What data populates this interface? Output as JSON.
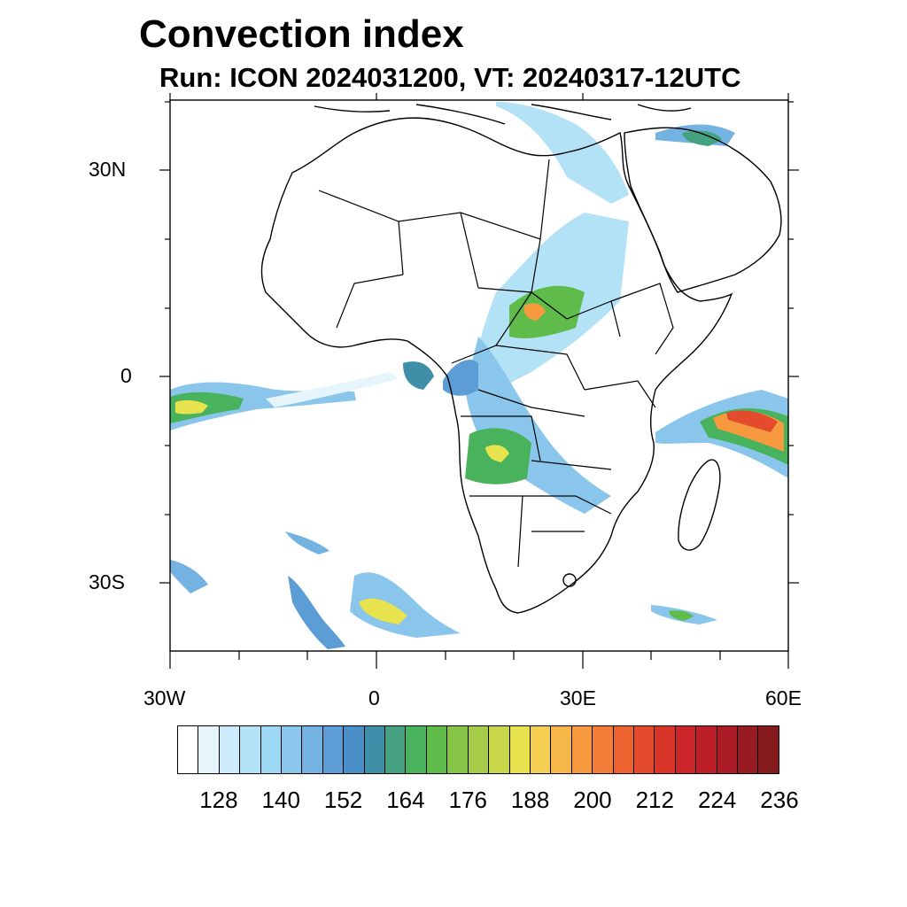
{
  "title": "Convection index",
  "subtitle": "Run: ICON 2024031200,  VT: 20240317-12UTC",
  "axes": {
    "lat_labels": [
      "30N",
      "0",
      "30S"
    ],
    "lon_labels": [
      "30W",
      "0",
      "30E",
      "60E"
    ]
  },
  "colorbar": {
    "colors": [
      "#ffffff",
      "#e6f4fc",
      "#cdebfa",
      "#b3e2f7",
      "#9dd8f4",
      "#8ac6ec",
      "#74b2e2",
      "#5c9dd5",
      "#4a8fc8",
      "#3f8fa8",
      "#44a280",
      "#48b35c",
      "#5fbb4a",
      "#86c447",
      "#a7cc4a",
      "#c8d64a",
      "#e6e34f",
      "#f5cf52",
      "#f7b648",
      "#f6993f",
      "#f27d36",
      "#ec6330",
      "#e44b2c",
      "#d93428",
      "#cc2529",
      "#bd1f29",
      "#ab1c26",
      "#981b22",
      "#861b1e"
    ],
    "tick_labels": [
      "128",
      "140",
      "152",
      "164",
      "176",
      "188",
      "200",
      "212",
      "224",
      "236"
    ]
  },
  "map": {
    "lon_range": [
      -30,
      60
    ],
    "lat_range": [
      -40,
      40
    ]
  }
}
